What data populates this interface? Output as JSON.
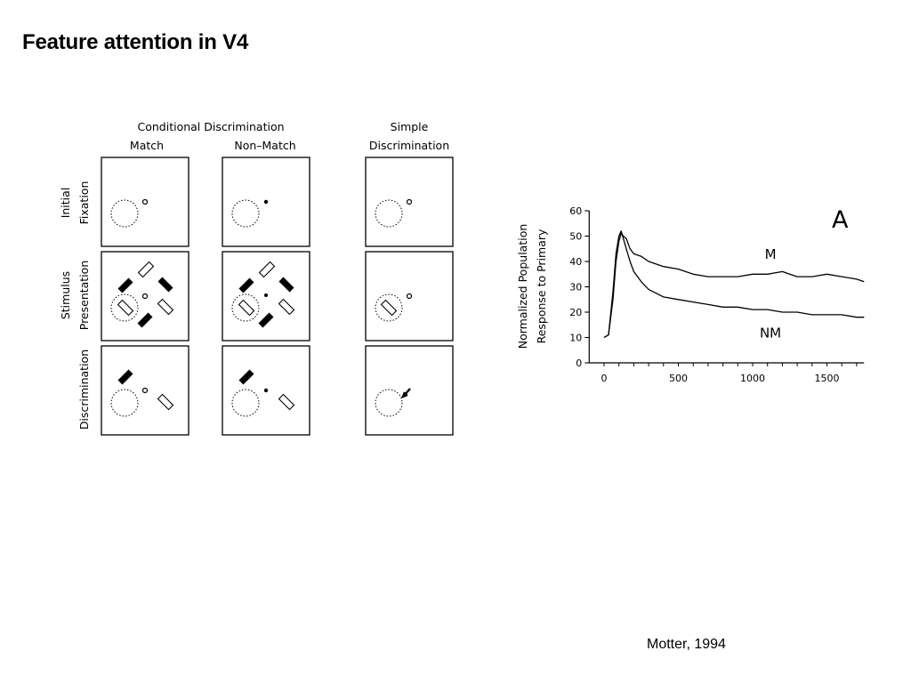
{
  "slide": {
    "title": "Feature attention in V4",
    "citation": "Motter, 1994"
  },
  "task_figure": {
    "group_header": "Conditional  Discrimination",
    "columns": [
      "Match",
      "Non–Match"
    ],
    "simple_header": [
      "Simple",
      "Discrimination"
    ],
    "row_labels": [
      [
        "Initial",
        "Fixation"
      ],
      [
        "Stimulus",
        "Presentation"
      ],
      [
        "Discrimination"
      ]
    ]
  },
  "chart_data": {
    "type": "line",
    "panel_label": "A",
    "ylabel": [
      "Normalized Population",
      "Response to Primary"
    ],
    "xlabel": "",
    "xlim": [
      -100,
      1750
    ],
    "ylim": [
      0,
      60
    ],
    "xticks": [
      0,
      500,
      1000,
      1500
    ],
    "yticks": [
      0,
      10,
      20,
      30,
      40,
      50,
      60
    ],
    "grid": false,
    "series": [
      {
        "name": "M",
        "x": [
          0,
          30,
          60,
          80,
          100,
          115,
          130,
          150,
          175,
          200,
          250,
          300,
          400,
          500,
          600,
          700,
          800,
          900,
          1000,
          1100,
          1200,
          1300,
          1400,
          1500,
          1600,
          1700,
          1750
        ],
        "y": [
          10,
          11,
          25,
          40,
          48,
          51,
          50,
          49,
          45,
          43,
          42,
          40,
          38,
          37,
          35,
          34,
          34,
          34,
          35,
          35,
          36,
          34,
          34,
          35,
          34,
          33,
          32
        ]
      },
      {
        "name": "NM",
        "x": [
          0,
          30,
          60,
          80,
          100,
          115,
          130,
          150,
          175,
          200,
          250,
          300,
          400,
          500,
          600,
          700,
          800,
          900,
          1000,
          1100,
          1200,
          1300,
          1400,
          1500,
          1600,
          1700,
          1750
        ],
        "y": [
          10,
          11,
          28,
          43,
          50,
          52,
          49,
          45,
          40,
          36,
          32,
          29,
          26,
          25,
          24,
          23,
          22,
          22,
          21,
          21,
          20,
          20,
          19,
          19,
          19,
          18,
          18
        ]
      }
    ]
  }
}
